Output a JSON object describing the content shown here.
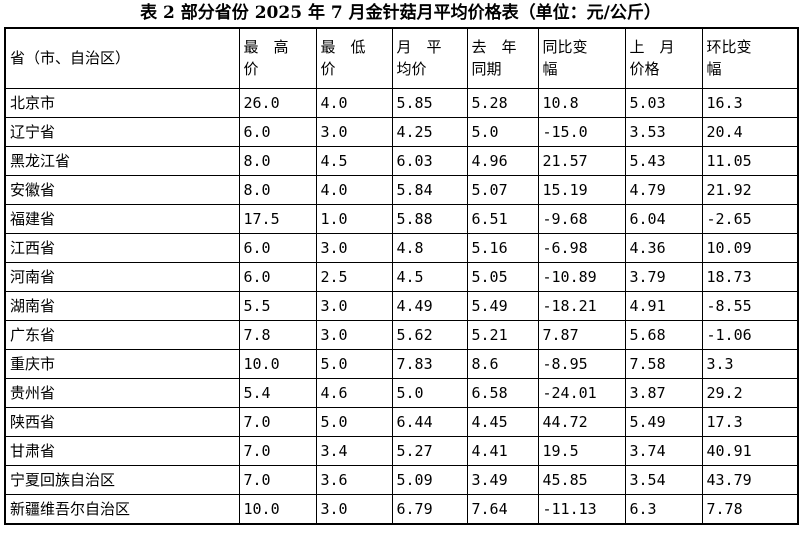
{
  "caption": "表 2 部分省份 2025 年 7 月金针菇月平均价格表（单位：元/公斤）",
  "table": {
    "headers": {
      "province": "省（市、自治区）",
      "max_price": [
        "最　高",
        "价"
      ],
      "min_price": [
        "最　低",
        "价"
      ],
      "month_avg": [
        "月　平",
        "均价"
      ],
      "last_year": [
        "去　年",
        "同期"
      ],
      "yoy_change": [
        "同比变",
        "幅"
      ],
      "last_month": [
        "上　月",
        "价格"
      ],
      "mom_change": [
        "环比变",
        "幅"
      ]
    },
    "rows": [
      {
        "province": "北京市",
        "max": "26.0",
        "min": "4.0",
        "avg": "5.85",
        "last_year": "5.28",
        "yoy": "10.8",
        "last_month": "5.03",
        "mom": "16.3"
      },
      {
        "province": "辽宁省",
        "max": "6.0",
        "min": "3.0",
        "avg": "4.25",
        "last_year": "5.0",
        "yoy": "-15.0",
        "last_month": "3.53",
        "mom": "20.4"
      },
      {
        "province": "黑龙江省",
        "max": "8.0",
        "min": "4.5",
        "avg": "6.03",
        "last_year": "4.96",
        "yoy": "21.57",
        "last_month": "5.43",
        "mom": "11.05"
      },
      {
        "province": "安徽省",
        "max": "8.0",
        "min": "4.0",
        "avg": "5.84",
        "last_year": "5.07",
        "yoy": "15.19",
        "last_month": "4.79",
        "mom": "21.92"
      },
      {
        "province": "福建省",
        "max": "17.5",
        "min": "1.0",
        "avg": "5.88",
        "last_year": "6.51",
        "yoy": "-9.68",
        "last_month": "6.04",
        "mom": "-2.65"
      },
      {
        "province": "江西省",
        "max": "6.0",
        "min": "3.0",
        "avg": "4.8",
        "last_year": "5.16",
        "yoy": "-6.98",
        "last_month": "4.36",
        "mom": "10.09"
      },
      {
        "province": "河南省",
        "max": "6.0",
        "min": "2.5",
        "avg": "4.5",
        "last_year": "5.05",
        "yoy": "-10.89",
        "last_month": "3.79",
        "mom": "18.73"
      },
      {
        "province": "湖南省",
        "max": "5.5",
        "min": "3.0",
        "avg": "4.49",
        "last_year": "5.49",
        "yoy": "-18.21",
        "last_month": "4.91",
        "mom": "-8.55"
      },
      {
        "province": "广东省",
        "max": "7.8",
        "min": "3.0",
        "avg": "5.62",
        "last_year": "5.21",
        "yoy": "7.87",
        "last_month": "5.68",
        "mom": "-1.06"
      },
      {
        "province": "重庆市",
        "max": "10.0",
        "min": "5.0",
        "avg": "7.83",
        "last_year": "8.6",
        "yoy": "-8.95",
        "last_month": "7.58",
        "mom": "3.3"
      },
      {
        "province": "贵州省",
        "max": "5.4",
        "min": "4.6",
        "avg": "5.0",
        "last_year": "6.58",
        "yoy": "-24.01",
        "last_month": "3.87",
        "mom": "29.2"
      },
      {
        "province": "陕西省",
        "max": "7.0",
        "min": "5.0",
        "avg": "6.44",
        "last_year": "4.45",
        "yoy": "44.72",
        "last_month": "5.49",
        "mom": "17.3"
      },
      {
        "province": "甘肃省",
        "max": "7.0",
        "min": "3.4",
        "avg": "5.27",
        "last_year": "4.41",
        "yoy": "19.5",
        "last_month": "3.74",
        "mom": "40.91"
      },
      {
        "province": "宁夏回族自治区",
        "max": "7.0",
        "min": "3.6",
        "avg": "5.09",
        "last_year": "3.49",
        "yoy": "45.85",
        "last_month": "3.54",
        "mom": "43.79"
      },
      {
        "province": "新疆维吾尔自治区",
        "max": "10.0",
        "min": "3.0",
        "avg": "6.79",
        "last_year": "7.64",
        "yoy": "-11.13",
        "last_month": "6.3",
        "mom": "7.78"
      }
    ]
  }
}
